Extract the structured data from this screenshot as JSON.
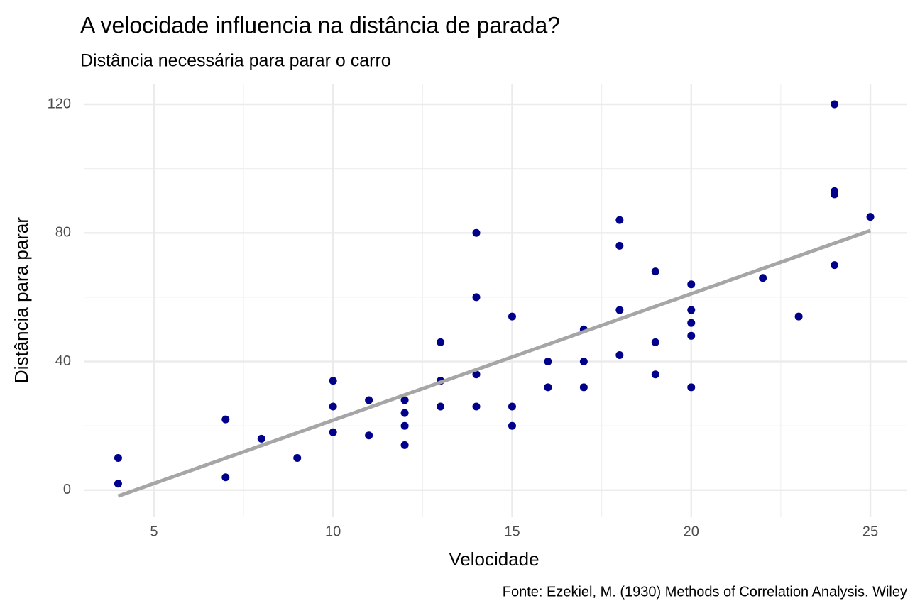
{
  "chart_data": {
    "type": "scatter",
    "title": "A velocidade influencia na distância de parada?",
    "subtitle": "Distância necessária para parar o carro",
    "x_label": "Velocidade",
    "y_label": "Distância para parar",
    "caption": "Fonte: Ezekiel, M. (1930) Methods of Correlation Analysis. Wiley",
    "x": [
      4,
      4,
      7,
      7,
      8,
      9,
      10,
      10,
      10,
      11,
      11,
      12,
      12,
      12,
      12,
      13,
      13,
      13,
      13,
      14,
      14,
      14,
      14,
      15,
      15,
      15,
      16,
      16,
      17,
      17,
      17,
      18,
      18,
      18,
      18,
      19,
      19,
      19,
      20,
      20,
      20,
      20,
      20,
      22,
      23,
      24,
      24,
      24,
      24,
      25
    ],
    "values": [
      2,
      10,
      4,
      22,
      16,
      10,
      18,
      26,
      34,
      17,
      28,
      14,
      20,
      24,
      28,
      26,
      34,
      34,
      46,
      26,
      36,
      60,
      80,
      20,
      26,
      54,
      32,
      40,
      32,
      40,
      50,
      42,
      56,
      76,
      84,
      36,
      46,
      68,
      32,
      48,
      52,
      56,
      64,
      66,
      54,
      70,
      92,
      93,
      120,
      85
    ],
    "color": "#00008b",
    "trend": {
      "x": [
        4,
        25
      ],
      "values": [
        -1.85,
        80.73
      ],
      "color": "#a6a6a6"
    },
    "xlim": [
      3.04,
      26.03
    ],
    "ylim": [
      -8.2,
      126.4
    ],
    "xticks": [
      5,
      10,
      15,
      20,
      25
    ],
    "yticks": [
      0,
      40,
      80,
      120
    ],
    "minor_xticks": [
      7.5,
      12.5,
      17.5,
      22.5
    ],
    "minor_yticks": [
      20,
      60,
      100
    ],
    "grid": true
  }
}
